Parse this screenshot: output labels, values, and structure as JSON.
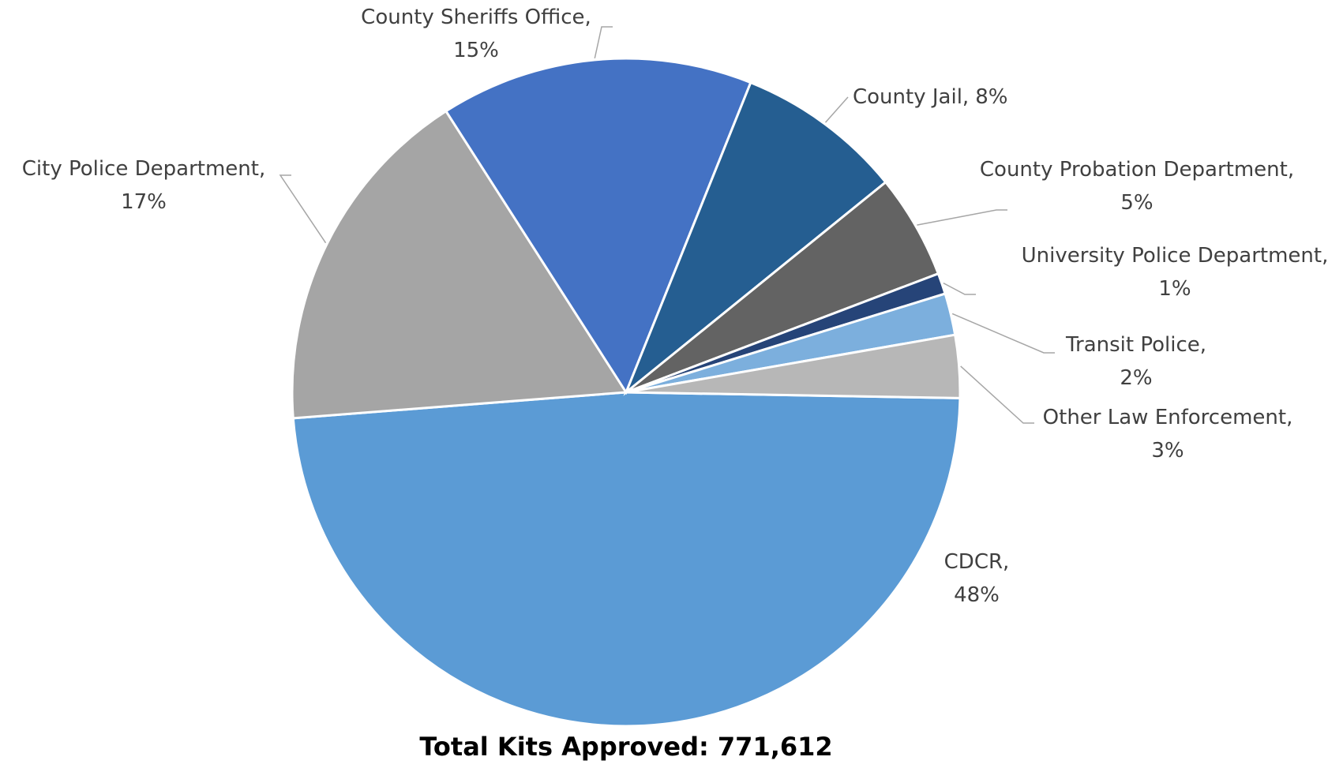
{
  "chart_data": {
    "type": "pie",
    "title": "Total Kits Approved: 771,612",
    "categories": [
      "CDCR,",
      "City Police Department,",
      "County Sheriffs Office,",
      "County Jail,",
      "County Probation Department,",
      "University Police Department,",
      "Transit Police,",
      "Other Law Enforcement,"
    ],
    "values": [
      48,
      17,
      15,
      8,
      5,
      1,
      2,
      3
    ],
    "value_labels": [
      "48%",
      "17%",
      "15%",
      "8%",
      "5%",
      "1%",
      "2%",
      "3%"
    ],
    "colors": [
      "#5b9bd5",
      "#a5a5a5",
      "#4472c4",
      "#255e91",
      "#636363",
      "#264478",
      "#7cafdd",
      "#b7b7b7"
    ]
  }
}
